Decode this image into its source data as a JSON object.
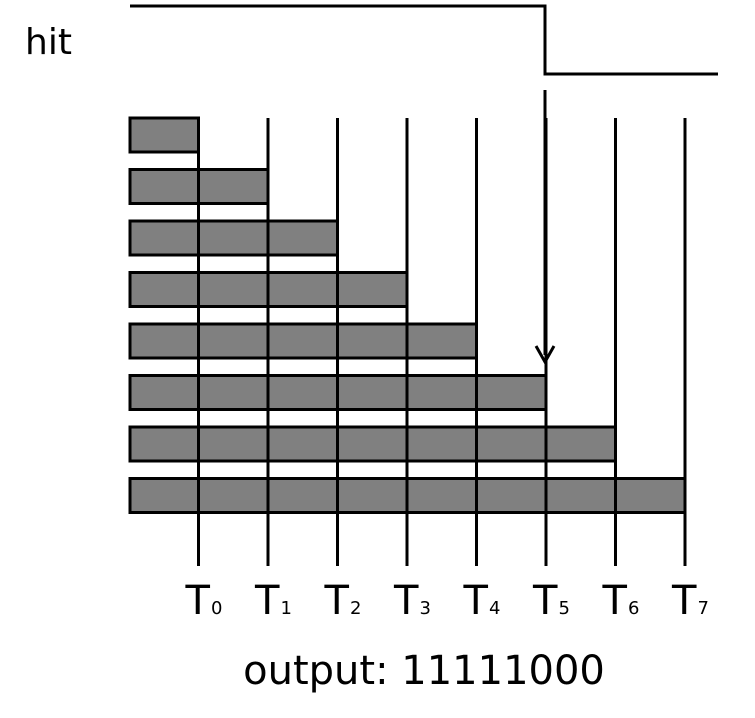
{
  "signal": {
    "label": "hit"
  },
  "bars": {
    "count": 8,
    "lengths": [
      1,
      2,
      3,
      4,
      5,
      6,
      7,
      8
    ]
  },
  "taps": [
    {
      "base": "T",
      "sub": "0"
    },
    {
      "base": "T",
      "sub": "1"
    },
    {
      "base": "T",
      "sub": "2"
    },
    {
      "base": "T",
      "sub": "3"
    },
    {
      "base": "T",
      "sub": "4"
    },
    {
      "base": "T",
      "sub": "5"
    },
    {
      "base": "T",
      "sub": "6"
    },
    {
      "base": "T",
      "sub": "7"
    }
  ],
  "arrow_points_to_bar": 5,
  "output": {
    "label": "output: 11111000"
  },
  "colors": {
    "bar_fill": "#808080",
    "stroke": "#000000",
    "background": "#ffffff"
  }
}
